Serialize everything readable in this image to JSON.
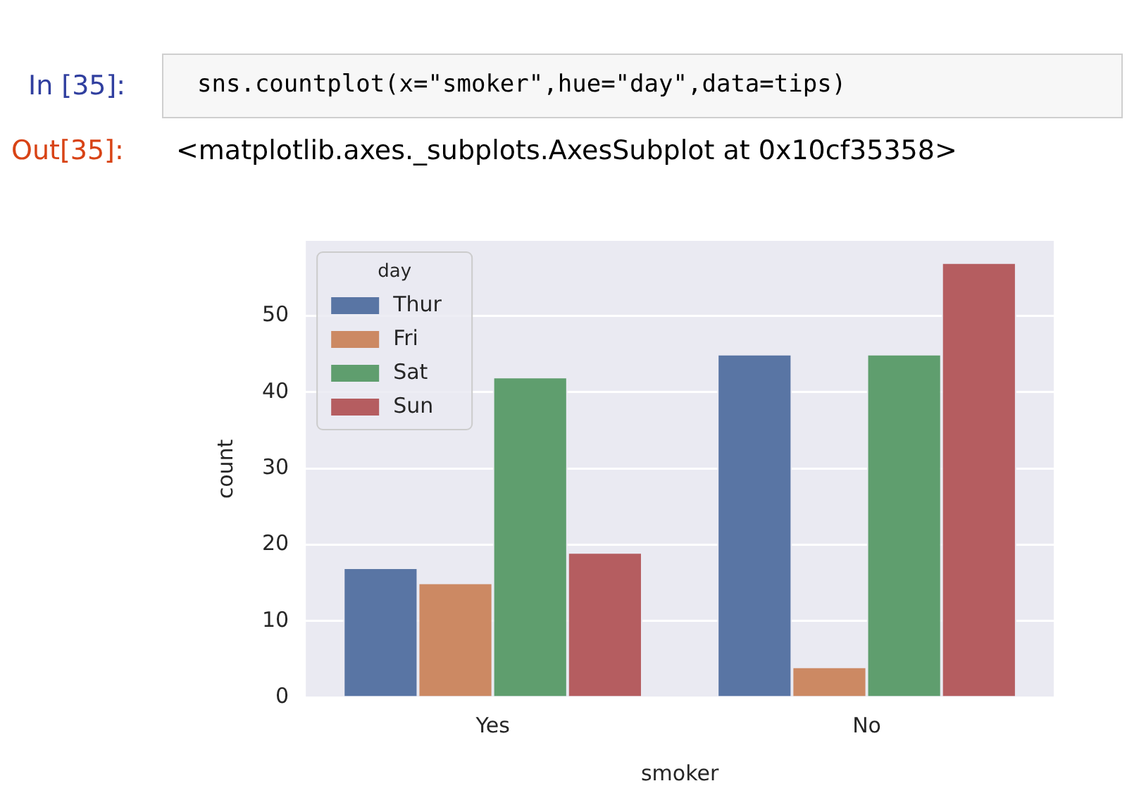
{
  "chart_data": {
    "type": "bar",
    "xlabel": "smoker",
    "ylabel": "count",
    "legend_title": "day",
    "legend": "top left",
    "grid": "y",
    "categories": [
      "Yes",
      "No"
    ],
    "series": [
      {
        "name": "Thur",
        "color": "#5975a4",
        "values": [
          17,
          45
        ]
      },
      {
        "name": "Fri",
        "color": "#cc8963",
        "values": [
          15,
          4
        ]
      },
      {
        "name": "Sat",
        "color": "#5f9e6e",
        "values": [
          42,
          45
        ]
      },
      {
        "name": "Sun",
        "color": "#b55d60",
        "values": [
          19,
          57
        ]
      }
    ],
    "ylim": [
      0,
      59.85
    ],
    "yticks": [
      0,
      10,
      20,
      30,
      40,
      50
    ],
    "annotations": [
      "In [35]:",
      "sns.countplot(x=\"smoker\",hue=\"day\",data=tips)",
      "Out[35]:",
      "<matplotlib.axes._subplots.AxesSubplot at 0x10cf35358>"
    ]
  }
}
